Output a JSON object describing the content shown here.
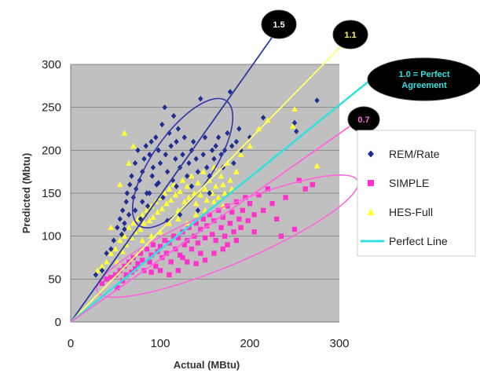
{
  "chart_data": {
    "type": "scatter",
    "xlabel": "Actual (MBtu)",
    "ylabel": "Predicted (Mbtu)",
    "xlim": [
      0,
      300
    ],
    "ylim": [
      0,
      300
    ],
    "xticks": [
      "0",
      "100",
      "200",
      "300"
    ],
    "yticks": [
      "0",
      "50",
      "100",
      "150",
      "200",
      "250",
      "300"
    ],
    "grid": true,
    "plot_background": "#c0c0c0",
    "legend_position": "right",
    "series": [
      {
        "name": "REM/Rate",
        "marker": "diamond",
        "color": "#1f2f8f",
        "points": [
          [
            28,
            55
          ],
          [
            35,
            60
          ],
          [
            40,
            80
          ],
          [
            45,
            85
          ],
          [
            48,
            95
          ],
          [
            52,
            110
          ],
          [
            55,
            120
          ],
          [
            57,
            102
          ],
          [
            58,
            130
          ],
          [
            60,
            115
          ],
          [
            62,
            140
          ],
          [
            63,
            150
          ],
          [
            65,
            125
          ],
          [
            66,
            160
          ],
          [
            68,
            170
          ],
          [
            70,
            145
          ],
          [
            72,
            185
          ],
          [
            73,
            155
          ],
          [
            75,
            200
          ],
          [
            77,
            165
          ],
          [
            78,
            120
          ],
          [
            80,
            175
          ],
          [
            82,
            190
          ],
          [
            84,
            205
          ],
          [
            85,
            150
          ],
          [
            86,
            135
          ],
          [
            88,
            195
          ],
          [
            90,
            210
          ],
          [
            91,
            170
          ],
          [
            92,
            180
          ],
          [
            95,
            215
          ],
          [
            96,
            160
          ],
          [
            98,
            200
          ],
          [
            100,
            185
          ],
          [
            102,
            230
          ],
          [
            103,
            145
          ],
          [
            105,
            250
          ],
          [
            106,
            195
          ],
          [
            108,
            175
          ],
          [
            110,
            220
          ],
          [
            112,
            205
          ],
          [
            114,
            165
          ],
          [
            115,
            240
          ],
          [
            117,
            190
          ],
          [
            118,
            210
          ],
          [
            120,
            225
          ],
          [
            122,
            180
          ],
          [
            125,
            195
          ],
          [
            127,
            215
          ],
          [
            130,
            170
          ],
          [
            132,
            185
          ],
          [
            135,
            200
          ],
          [
            137,
            210
          ],
          [
            140,
            190
          ],
          [
            142,
            175
          ],
          [
            145,
            260
          ],
          [
            148,
            195
          ],
          [
            150,
            215
          ],
          [
            152,
            180
          ],
          [
            155,
            170
          ],
          [
            158,
            200
          ],
          [
            160,
            190
          ],
          [
            162,
            205
          ],
          [
            165,
            215
          ],
          [
            168,
            195
          ],
          [
            170,
            180
          ],
          [
            172,
            200
          ],
          [
            175,
            220
          ],
          [
            178,
            268
          ],
          [
            180,
            205
          ],
          [
            182,
            185
          ],
          [
            185,
            210
          ],
          [
            188,
            225
          ],
          [
            190,
            200
          ],
          [
            200,
            215
          ],
          [
            215,
            238
          ],
          [
            250,
            232
          ],
          [
            252,
            222
          ],
          [
            275,
            258
          ],
          [
            98,
            162
          ],
          [
            88,
            150
          ],
          [
            72,
            130
          ],
          [
            60,
            108
          ],
          [
            118,
            158
          ],
          [
            135,
            158
          ],
          [
            142,
            130
          ],
          [
            155,
            150
          ],
          [
            108,
            118
          ],
          [
            122,
            125
          ],
          [
            80,
            140
          ]
        ]
      },
      {
        "name": "SIMPLE",
        "marker": "square",
        "color": "#ff33cc",
        "points": [
          [
            35,
            45
          ],
          [
            40,
            50
          ],
          [
            45,
            52
          ],
          [
            50,
            55
          ],
          [
            52,
            40
          ],
          [
            55,
            60
          ],
          [
            58,
            48
          ],
          [
            60,
            65
          ],
          [
            62,
            55
          ],
          [
            65,
            70
          ],
          [
            68,
            58
          ],
          [
            70,
            75
          ],
          [
            72,
            62
          ],
          [
            75,
            68
          ],
          [
            78,
            80
          ],
          [
            80,
            72
          ],
          [
            82,
            60
          ],
          [
            85,
            85
          ],
          [
            88,
            70
          ],
          [
            90,
            78
          ],
          [
            92,
            90
          ],
          [
            95,
            65
          ],
          [
            97,
            82
          ],
          [
            100,
            88
          ],
          [
            102,
            75
          ],
          [
            105,
            95
          ],
          [
            107,
            80
          ],
          [
            110,
            92
          ],
          [
            112,
            70
          ],
          [
            115,
            100
          ],
          [
            117,
            85
          ],
          [
            120,
            98
          ],
          [
            122,
            78
          ],
          [
            125,
            105
          ],
          [
            127,
            90
          ],
          [
            130,
            95
          ],
          [
            132,
            110
          ],
          [
            135,
            85
          ],
          [
            138,
            100
          ],
          [
            140,
            115
          ],
          [
            142,
            92
          ],
          [
            145,
            108
          ],
          [
            148,
            120
          ],
          [
            150,
            98
          ],
          [
            152,
            112
          ],
          [
            155,
            125
          ],
          [
            158,
            102
          ],
          [
            160,
            118
          ],
          [
            162,
            95
          ],
          [
            165,
            130
          ],
          [
            168,
            110
          ],
          [
            170,
            122
          ],
          [
            172,
            100
          ],
          [
            175,
            135
          ],
          [
            178,
            115
          ],
          [
            180,
            128
          ],
          [
            182,
            105
          ],
          [
            185,
            140
          ],
          [
            188,
            120
          ],
          [
            190,
            110
          ],
          [
            192,
            130
          ],
          [
            195,
            145
          ],
          [
            198,
            118
          ],
          [
            200,
            138
          ],
          [
            205,
            125
          ],
          [
            210,
            148
          ],
          [
            215,
            130
          ],
          [
            220,
            155
          ],
          [
            225,
            138
          ],
          [
            230,
            120
          ],
          [
            240,
            145
          ],
          [
            250,
            108
          ],
          [
            255,
            165
          ],
          [
            262,
            155
          ],
          [
            270,
            160
          ],
          [
            120,
            60
          ],
          [
            130,
            70
          ],
          [
            140,
            68
          ],
          [
            150,
            72
          ],
          [
            160,
            80
          ],
          [
            170,
            85
          ],
          [
            110,
            55
          ],
          [
            100,
            60
          ],
          [
            145,
            80
          ],
          [
            175,
            90
          ],
          [
            185,
            95
          ],
          [
            205,
            105
          ],
          [
            235,
            100
          ],
          [
            125,
            75
          ],
          [
            90,
            58
          ]
        ]
      },
      {
        "name": "HES-Full",
        "marker": "triangle",
        "color": "#ffff33",
        "points": [
          [
            30,
            60
          ],
          [
            35,
            65
          ],
          [
            40,
            70
          ],
          [
            45,
            80
          ],
          [
            50,
            85
          ],
          [
            52,
            70
          ],
          [
            55,
            95
          ],
          [
            58,
            82
          ],
          [
            60,
            100
          ],
          [
            62,
            90
          ],
          [
            65,
            110
          ],
          [
            68,
            98
          ],
          [
            70,
            115
          ],
          [
            72,
            105
          ],
          [
            75,
            120
          ],
          [
            78,
            108
          ],
          [
            80,
            125
          ],
          [
            82,
            115
          ],
          [
            85,
            130
          ],
          [
            88,
            118
          ],
          [
            90,
            135
          ],
          [
            92,
            122
          ],
          [
            95,
            140
          ],
          [
            97,
            128
          ],
          [
            100,
            145
          ],
          [
            102,
            132
          ],
          [
            105,
            150
          ],
          [
            107,
            138
          ],
          [
            110,
            155
          ],
          [
            112,
            142
          ],
          [
            115,
            160
          ],
          [
            117,
            148
          ],
          [
            120,
            130
          ],
          [
            122,
            152
          ],
          [
            125,
            165
          ],
          [
            127,
            140
          ],
          [
            130,
            158
          ],
          [
            132,
            145
          ],
          [
            135,
            170
          ],
          [
            138,
            150
          ],
          [
            140,
            138
          ],
          [
            142,
            162
          ],
          [
            145,
            148
          ],
          [
            148,
            175
          ],
          [
            150,
            155
          ],
          [
            152,
            142
          ],
          [
            155,
            165
          ],
          [
            158,
            150
          ],
          [
            160,
            180
          ],
          [
            162,
            158
          ],
          [
            165,
            145
          ],
          [
            168,
            170
          ],
          [
            170,
            160
          ],
          [
            172,
            150
          ],
          [
            175,
            185
          ],
          [
            178,
            165
          ],
          [
            180,
            155
          ],
          [
            185,
            175
          ],
          [
            190,
            195
          ],
          [
            200,
            205
          ],
          [
            210,
            225
          ],
          [
            220,
            235
          ],
          [
            250,
            248
          ],
          [
            275,
            182
          ],
          [
            248,
            228
          ],
          [
            60,
            220
          ],
          [
            65,
            185
          ],
          [
            70,
            205
          ],
          [
            55,
            160
          ],
          [
            45,
            110
          ],
          [
            130,
            115
          ],
          [
            140,
            125
          ],
          [
            150,
            130
          ],
          [
            100,
            105
          ],
          [
            110,
            115
          ],
          [
            90,
            100
          ],
          [
            80,
            95
          ],
          [
            120,
            120
          ],
          [
            160,
            140
          ],
          [
            170,
            135
          ]
        ]
      },
      {
        "name": "Perfect Line",
        "marker": "line",
        "color": "#33e0e0",
        "points": [
          [
            0,
            0
          ],
          [
            290,
            290
          ]
        ]
      }
    ],
    "ratio_lines": [
      {
        "label": "1.5",
        "slope": 1.5,
        "color": "#2e3a9e",
        "bubble_fill": "#000000",
        "bubble_text": "#ffffff"
      },
      {
        "label": "1.1",
        "slope": 1.1,
        "color": "#ffff66",
        "bubble_fill": "#000000",
        "bubble_text": "#ffff66"
      },
      {
        "label": "1.0 = Perfect Agreement",
        "line1": "1.0 = Perfect",
        "line2": "Agreement",
        "slope": 1.0,
        "color": "#33e0e0",
        "bubble_fill": "#000000",
        "bubble_text": "#33e0e0"
      },
      {
        "label": "0.7",
        "slope": 0.7,
        "color": "#ff66dd",
        "bubble_fill": "#000000",
        "bubble_text": "#ff66dd"
      }
    ],
    "ellipses": [
      {
        "cx": 125,
        "cy": 185,
        "rx": 85,
        "ry": 35,
        "angle_deg": 55,
        "color": "#3333aa"
      },
      {
        "cx": 175,
        "cy": 100,
        "rx": 158,
        "ry": 33,
        "angle_deg": 23,
        "color": "#ff66dd"
      }
    ]
  }
}
